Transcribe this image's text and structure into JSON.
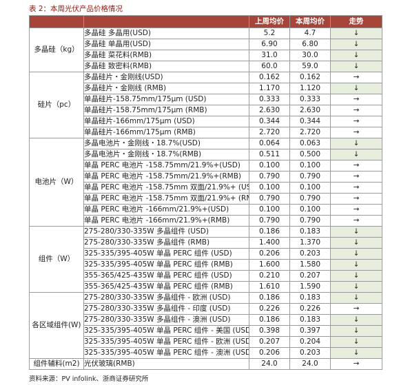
{
  "caption": "表 2：本周光伏产品价格情况",
  "header": {
    "item": "",
    "this_week": "上周均价",
    "last_week": "本周均价",
    "trend": "走势"
  },
  "groups": [
    {
      "category": "多晶硅（kg）",
      "rows": [
        {
          "item": "多晶硅  多晶用(USD)",
          "prev": "5.2",
          "curr": "4.7",
          "trend": "↓",
          "dir": "down"
        },
        {
          "item": "多晶硅  单晶用(USD)",
          "prev": "6.90",
          "curr": "6.80",
          "trend": "↓",
          "dir": "down"
        },
        {
          "item": "多晶硅  菜花料(RMB)",
          "prev": "31.0",
          "curr": "30.0",
          "trend": "↓",
          "dir": "down"
        },
        {
          "item": "多晶硅  致密料(RMB)",
          "prev": "60.0",
          "curr": "59.0",
          "trend": "↓",
          "dir": "down"
        }
      ]
    },
    {
      "category": "硅片（pc）",
      "rows": [
        {
          "item": "多晶硅片・金刚线(USD)",
          "prev": "0.162",
          "curr": "0.162",
          "trend": "→",
          "dir": "flat"
        },
        {
          "item": "多晶硅片・金刚线 (RMB)",
          "prev": "1.170",
          "curr": "1.120",
          "trend": "↓",
          "dir": "down"
        },
        {
          "item": "单晶硅片-158.75mm/175μm (USD)",
          "prev": "0.333",
          "curr": "0.333",
          "trend": "→",
          "dir": "flat"
        },
        {
          "item": "单晶硅片-158.75mm/175μm (RMB)",
          "prev": "2.630",
          "curr": "2.630",
          "trend": "→",
          "dir": "flat"
        },
        {
          "item": "单晶硅片-166mm/175μm (USD)",
          "prev": "0.344",
          "curr": "0.344",
          "trend": "→",
          "dir": "flat"
        },
        {
          "item": "单晶硅片-166mm/175μm (RMB)",
          "prev": "2.720",
          "curr": "2.720",
          "trend": "→",
          "dir": "flat"
        }
      ]
    },
    {
      "category": "电池片（W）",
      "rows": [
        {
          "item": "多晶电池片・金刚线・18.7%(USD)",
          "prev": "0.064",
          "curr": "0.063",
          "trend": "↓",
          "dir": "down"
        },
        {
          "item": "多晶电池片・金刚线・18.7%(RMB)",
          "prev": "0.511",
          "curr": "0.500",
          "trend": "↓",
          "dir": "down"
        },
        {
          "item": "单晶 PERC 电池片 -158.75mm/21.9%+(USD)",
          "prev": "0.100",
          "curr": "0.100",
          "trend": "→",
          "dir": "flat"
        },
        {
          "item": "单晶 PERC 电池片 -158.75mm/21.9%+(RMB)",
          "prev": "0.790",
          "curr": "0.790",
          "trend": "→",
          "dir": "flat"
        },
        {
          "item": "单晶 PERC 电池片 -158.75mm 双面/21.9%+ (USD)",
          "prev": "0.100",
          "curr": "0.100",
          "trend": "→",
          "dir": "flat"
        },
        {
          "item": "单晶 PERC 电池片 -158.75mm 双面/21.9%+ (RMB)",
          "prev": "0.790",
          "curr": "0.790",
          "trend": "→",
          "dir": "flat"
        },
        {
          "item": "单晶 PERC 电池片 -166mm/21.9%+(USD)",
          "prev": "0.100",
          "curr": "0.100",
          "trend": "→",
          "dir": "flat"
        },
        {
          "item": "单晶 PERC 电池片 -166mm/21.9%+(RMB)",
          "prev": "0.790",
          "curr": "0.790",
          "trend": "→",
          "dir": "flat"
        }
      ]
    },
    {
      "category": "组件（W）",
      "rows": [
        {
          "item": "275-280/330-335W 多晶组件 (USD)",
          "prev": "0.186",
          "curr": "0.183",
          "trend": "↓",
          "dir": "down"
        },
        {
          "item": "275-280/330-335W 多晶组件 (RMB)",
          "prev": "1.400",
          "curr": "1.370",
          "trend": "↓",
          "dir": "down"
        },
        {
          "item": "325-335/395-405W 单晶 PERC 组件 (USD)",
          "prev": "0.206",
          "curr": "0.203",
          "trend": "↓",
          "dir": "down"
        },
        {
          "item": "325-335/395-405W 单晶 PERC 组件 (RMB)",
          "prev": "1.600",
          "curr": "1.580",
          "trend": "↓",
          "dir": "down"
        },
        {
          "item": "355-365/425-435W 单晶 PERC 组件 (USD)",
          "prev": "0.210",
          "curr": "0.207",
          "trend": "↓",
          "dir": "down"
        },
        {
          "item": "355-365/425-435W 单晶 PERC 组件 (RMB)",
          "prev": "1.610",
          "curr": "1.590",
          "trend": "↓",
          "dir": "down"
        }
      ]
    },
    {
      "category": "各区域组件(W)",
      "rows": [
        {
          "item": "275-280/330-335W 多晶组件 - 欧洲 (USD)",
          "prev": "0.186",
          "curr": "0.183",
          "trend": "↓",
          "dir": "down"
        },
        {
          "item": "275-280/330-335W 多晶组件 - 印度 (USD)",
          "prev": "0.226",
          "curr": "0.226",
          "trend": "→",
          "dir": "flat"
        },
        {
          "item": "275-280/330-335W 多晶组件 - 澳洲 (USD)",
          "prev": "0.186",
          "curr": "0.183",
          "trend": "↓",
          "dir": "down"
        },
        {
          "item": "325-335/395-405W 单晶 PERC 组件 - 美国 (USD)",
          "prev": "0.398",
          "curr": "0.397",
          "trend": "↓",
          "dir": "down"
        },
        {
          "item": "325-335/395-405W 单晶 PERC 组件 - 欧洲 (USD)",
          "prev": "0.207",
          "curr": "0.204",
          "trend": "↓",
          "dir": "down"
        },
        {
          "item": "325-335/395-405W 单晶 PERC 组件 - 澳洲 (USD)",
          "prev": "0.206",
          "curr": "0.203",
          "trend": "↓",
          "dir": "down"
        }
      ]
    },
    {
      "category": "组件辅料(m2)",
      "rows": [
        {
          "item": "光伏玻璃(RMB)",
          "prev": "24.0",
          "curr": "24.0",
          "trend": "→",
          "dir": "flat"
        }
      ]
    }
  ],
  "source": "资料来源：PV infolink、浙商证券研究所"
}
